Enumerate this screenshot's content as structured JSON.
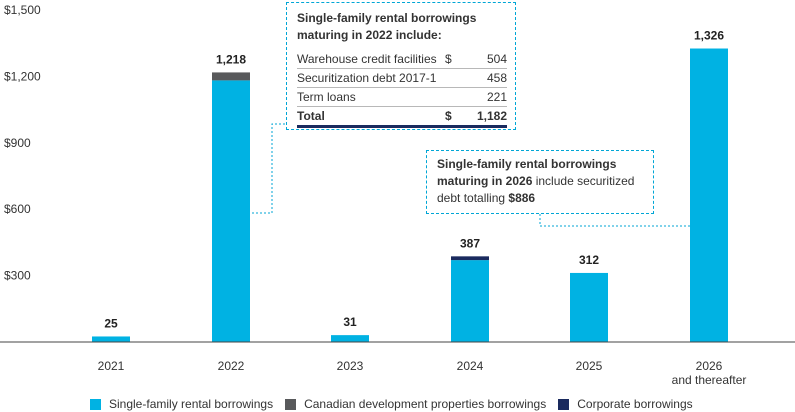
{
  "chart_data": {
    "type": "bar",
    "stacked": true,
    "categories": [
      "2021",
      "2022",
      "2023",
      "2024",
      "2025",
      "2026\nand thereafter"
    ],
    "series": [
      {
        "name": "Single-family rental borrowings",
        "color": "#00b2e3",
        "values": [
          25,
          1182,
          31,
          370,
          312,
          1326
        ]
      },
      {
        "name": "Canadian development properties borrowings",
        "color": "#58595b",
        "values": [
          0,
          36,
          0,
          0,
          0,
          0
        ]
      },
      {
        "name": "Corporate borrowings",
        "color": "#1a2a5e",
        "values": [
          0,
          0,
          0,
          17,
          0,
          0
        ]
      }
    ],
    "totals": [
      "25",
      "1,218",
      "31",
      "387",
      "312",
      "1,326"
    ],
    "y_ticks": [
      "$1,500",
      "$1,200",
      "$900",
      "$600",
      "$300"
    ],
    "ylim": [
      0,
      1500
    ],
    "grid": false,
    "legend_position": "bottom"
  },
  "callout_2022": {
    "title": "Single-family rental borrowings maturing in 2022 include:",
    "rows": [
      {
        "label": "Warehouse credit facilities",
        "currency": "$",
        "amount": "504"
      },
      {
        "label": "Securitization debt 2017-1",
        "currency": "",
        "amount": "458"
      },
      {
        "label": "Term loans",
        "currency": "",
        "amount": "221"
      }
    ],
    "total": {
      "label": "Total",
      "currency": "$",
      "amount": "1,182"
    }
  },
  "callout_2026": {
    "line1": "Single-family rental borrowings",
    "line2_bold": "maturing in 2026",
    "line2_rest": " include securitized",
    "line3_rest": "debt totalling ",
    "line3_bold": "$886"
  }
}
